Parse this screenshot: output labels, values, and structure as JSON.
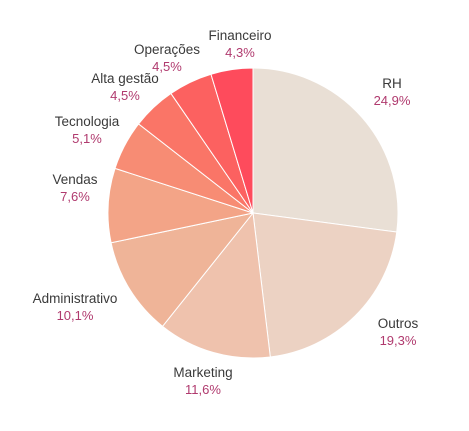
{
  "chart_data": {
    "type": "pie",
    "title": "",
    "start_angle_deg": 0,
    "direction": "clockwise",
    "slices": [
      {
        "label": "RH",
        "value": 24.9,
        "display": "24,9%",
        "color": "#e9dfd5"
      },
      {
        "label": "Outros",
        "value": 19.3,
        "display": "19,3%",
        "color": "#ecd2c3"
      },
      {
        "label": "Marketing",
        "value": 11.6,
        "display": "11,6%",
        "color": "#efc2ad"
      },
      {
        "label": "Administrativo",
        "value": 10.1,
        "display": "10,1%",
        "color": "#efb498"
      },
      {
        "label": "Vendas",
        "value": 7.6,
        "display": "7,6%",
        "color": "#f3a487"
      },
      {
        "label": "Tecnologia",
        "value": 5.1,
        "display": "5,1%",
        "color": "#f78c74"
      },
      {
        "label": "Alta gestão",
        "value": 4.5,
        "display": "4,5%",
        "color": "#fa7567"
      },
      {
        "label": "Operações",
        "value": 4.5,
        "display": "4,5%",
        "color": "#fc6160"
      },
      {
        "label": "Financeiro",
        "value": 4.3,
        "display": "4,3%",
        "color": "#fe4b5c"
      }
    ],
    "legend": "none"
  }
}
